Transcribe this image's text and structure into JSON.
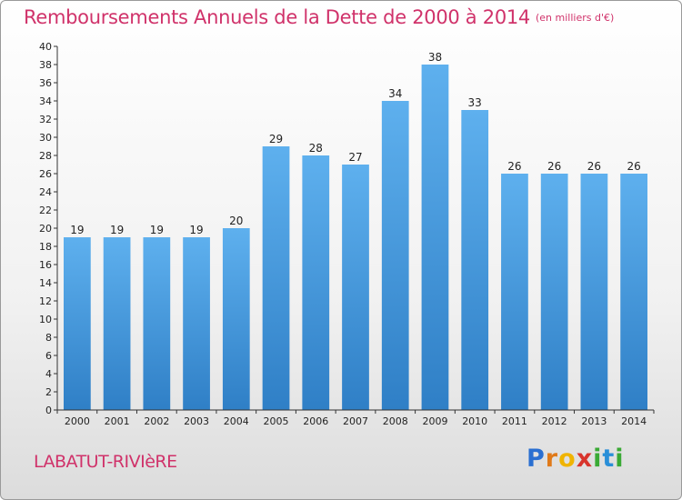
{
  "chart_data": {
    "type": "bar",
    "title": "Remboursements Annuels de la Dette de 2000 à 2014",
    "subtitle": "(en milliers d'€)",
    "categories": [
      "2000",
      "2001",
      "2002",
      "2003",
      "2004",
      "2005",
      "2006",
      "2007",
      "2008",
      "2009",
      "2010",
      "2011",
      "2012",
      "2013",
      "2014"
    ],
    "values": [
      19,
      19,
      19,
      19,
      20,
      29,
      28,
      27,
      34,
      38,
      33,
      26,
      26,
      26,
      26
    ],
    "xlabel": "",
    "ylabel": "",
    "ylim": [
      0,
      40
    ],
    "ytick_step": 2,
    "grid": false,
    "bar_color": "#4a9de0"
  },
  "place_name": "LABATUT-RIVIèRE",
  "logo": {
    "letters": [
      "P",
      "r",
      "o",
      "x",
      "i",
      "t",
      "i"
    ],
    "colors": [
      "#2a6fd1",
      "#e07a1a",
      "#f0b400",
      "#d8342c",
      "#3aaa35",
      "#2a8fd8",
      "#3aaa35"
    ]
  }
}
